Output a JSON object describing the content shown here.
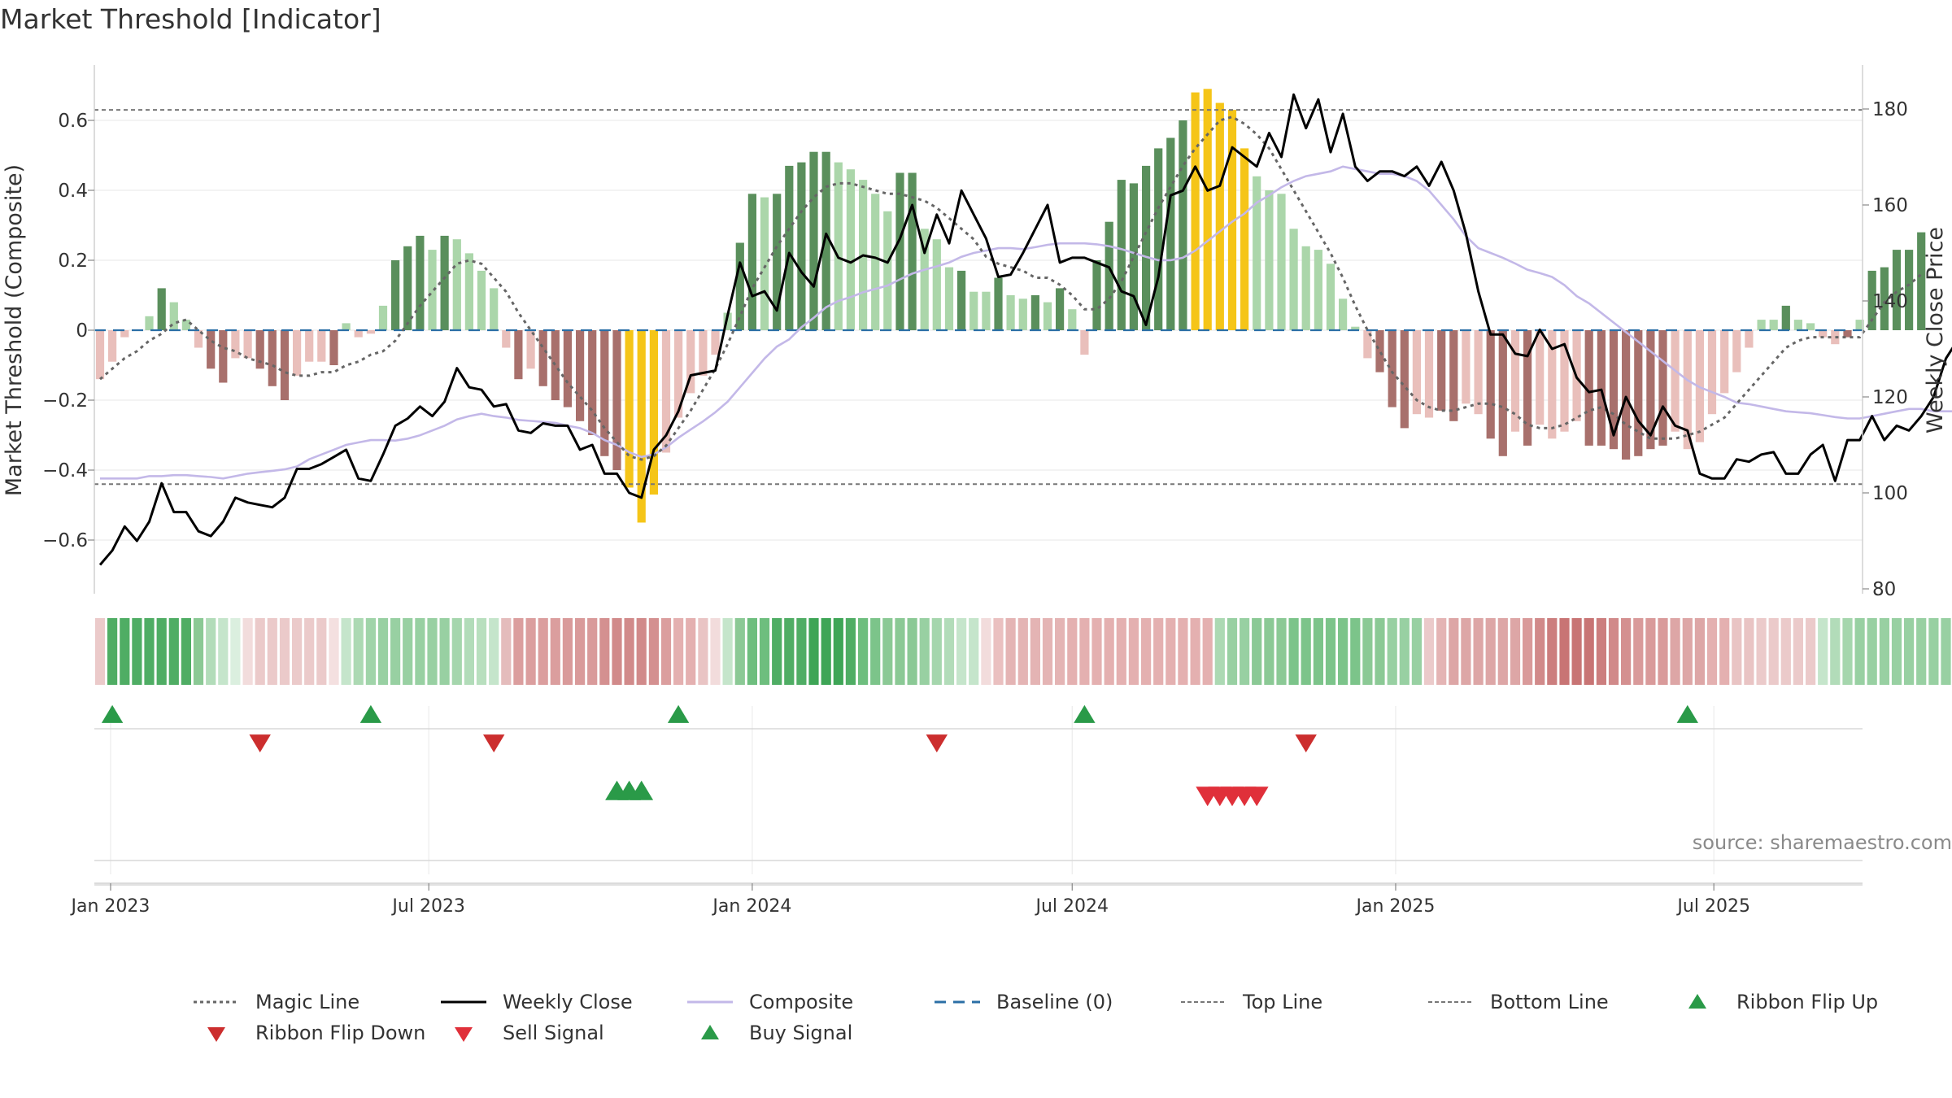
{
  "title": "Market Threshold [Indicator]",
  "source": "source: sharemaestro.com",
  "colors": {
    "magic_line": "#666666",
    "weekly_close": "#000000",
    "composite": "#c3b8e8",
    "baseline": "#2b6fa6",
    "threshold_line": "#777777",
    "bar_dark_green": "#5a8f5c",
    "bar_light_green": "#abd6aa",
    "bar_dark_red": "#a8706c",
    "bar_light_red": "#e9bfbb",
    "bar_extreme": "#f5c518",
    "flip_up": "#2a9a48",
    "flip_down": "#cc2e2e",
    "sell_signal": "#e0303a",
    "buy_signal": "#2a9a48"
  },
  "chart_data": {
    "type": "bar",
    "ylabel": "Market Threshold (Composite)",
    "ylabel_right": "Weekly Close Price",
    "ylim": [
      -0.75,
      0.76
    ],
    "ylim_right": [
      80,
      190
    ],
    "yticks": [
      0.6,
      0.4,
      0.2,
      0,
      -0.2,
      -0.4,
      -0.6
    ],
    "ytick_labels": [
      "0.6",
      "0.4",
      "0.2",
      "0",
      "−0.2",
      "−0.4",
      "−0.6"
    ],
    "yticks_right": [
      180,
      160,
      140,
      120,
      100,
      80
    ],
    "x_start": "2022-12-26",
    "x_step_days": 7,
    "x_ticks": [
      {
        "date": "2023-01-01",
        "label": "Jan 2023"
      },
      {
        "date": "2023-07-01",
        "label": "Jul 2023"
      },
      {
        "date": "2024-01-01",
        "label": "Jan 2024"
      },
      {
        "date": "2024-07-01",
        "label": "Jul 2024"
      },
      {
        "date": "2025-01-01",
        "label": "Jan 2025"
      },
      {
        "date": "2025-07-01",
        "label": "Jul 2025"
      }
    ],
    "top_line": 0.63,
    "bottom_line": -0.44,
    "baseline": 0,
    "composite_bars": [
      -0.14,
      -0.09,
      -0.02,
      0.0,
      0.04,
      0.12,
      0.08,
      0.03,
      -0.05,
      -0.11,
      -0.15,
      -0.08,
      -0.08,
      -0.11,
      -0.16,
      -0.2,
      -0.13,
      -0.09,
      -0.09,
      -0.1,
      0.02,
      -0.02,
      -0.01,
      0.07,
      0.2,
      0.24,
      0.27,
      0.23,
      0.27,
      0.26,
      0.22,
      0.17,
      0.12,
      -0.05,
      -0.14,
      -0.11,
      -0.16,
      -0.2,
      -0.22,
      -0.26,
      -0.3,
      -0.36,
      -0.4,
      -0.45,
      -0.55,
      -0.47,
      -0.35,
      -0.25,
      -0.18,
      -0.13,
      -0.07,
      0.05,
      0.25,
      0.39,
      0.38,
      0.39,
      0.47,
      0.48,
      0.51,
      0.51,
      0.48,
      0.46,
      0.43,
      0.39,
      0.34,
      0.45,
      0.45,
      0.29,
      0.26,
      0.18,
      0.17,
      0.11,
      0.11,
      0.15,
      0.1,
      0.09,
      0.1,
      0.08,
      0.12,
      0.06,
      -0.07,
      0.2,
      0.31,
      0.43,
      0.42,
      0.47,
      0.52,
      0.55,
      0.6,
      0.68,
      0.69,
      0.65,
      0.63,
      0.52,
      0.44,
      0.4,
      0.39,
      0.29,
      0.24,
      0.23,
      0.19,
      0.09,
      0.01,
      -0.08,
      -0.12,
      -0.22,
      -0.28,
      -0.24,
      -0.25,
      -0.23,
      -0.26,
      -0.21,
      -0.24,
      -0.31,
      -0.36,
      -0.29,
      -0.33,
      -0.27,
      -0.31,
      -0.29,
      -0.26,
      -0.33,
      -0.33,
      -0.34,
      -0.37,
      -0.36,
      -0.34,
      -0.33,
      -0.29,
      -0.34,
      -0.32,
      -0.24,
      -0.18,
      -0.12,
      -0.05,
      0.03,
      0.03,
      0.07,
      0.03,
      0.02,
      -0.02,
      -0.04,
      -0.02,
      0.03,
      0.17,
      0.18,
      0.23,
      0.23,
      0.28
    ],
    "bar_categories": [
      "lr",
      "lr",
      "lr",
      "lg",
      "lg",
      "dg",
      "lg",
      "lg",
      "lr",
      "dr",
      "dr",
      "lr",
      "lr",
      "dr",
      "dr",
      "dr",
      "lr",
      "lr",
      "lr",
      "dr",
      "lg",
      "lr",
      "lr",
      "lg",
      "dg",
      "dg",
      "dg",
      "lg",
      "dg",
      "lg",
      "lg",
      "lg",
      "lg",
      "lr",
      "dr",
      "lr",
      "dr",
      "dr",
      "dr",
      "dr",
      "dr",
      "dr",
      "dr",
      "ex",
      "ex",
      "ex",
      "lr",
      "lr",
      "lr",
      "lr",
      "lr",
      "lg",
      "dg",
      "dg",
      "lg",
      "dg",
      "dg",
      "dg",
      "dg",
      "dg",
      "lg",
      "lg",
      "lg",
      "lg",
      "lg",
      "dg",
      "dg",
      "lg",
      "lg",
      "lg",
      "dg",
      "lg",
      "lg",
      "dg",
      "lg",
      "lg",
      "dg",
      "lg",
      "dg",
      "lg",
      "lr",
      "dg",
      "dg",
      "dg",
      "dg",
      "dg",
      "dg",
      "dg",
      "dg",
      "ex",
      "ex",
      "ex",
      "ex",
      "ex",
      "lg",
      "lg",
      "lg",
      "lg",
      "lg",
      "lg",
      "lg",
      "lg",
      "lg",
      "lr",
      "dr",
      "dr",
      "dr",
      "lr",
      "lr",
      "dr",
      "dr",
      "lr",
      "lr",
      "dr",
      "dr",
      "lr",
      "dr",
      "lr",
      "lr",
      "lr",
      "lr",
      "dr",
      "dr",
      "dr",
      "dr",
      "dr",
      "dr",
      "dr",
      "lr",
      "lr",
      "lr",
      "lr",
      "lr",
      "lr",
      "lr",
      "lg",
      "lg",
      "dg",
      "lg",
      "lg",
      "lr",
      "lr",
      "dr",
      "lg",
      "dg",
      "dg",
      "dg",
      "dg",
      "dg"
    ],
    "weekly_close": [
      85,
      88,
      93,
      90,
      94,
      102,
      96,
      96,
      92,
      91,
      94,
      99,
      98,
      97.5,
      97,
      99,
      105,
      105,
      106,
      107.5,
      109,
      103,
      102.5,
      108,
      114,
      115.5,
      118,
      116,
      119,
      126,
      122,
      121.5,
      118,
      118.5,
      113,
      112.5,
      114.5,
      114,
      114,
      109,
      110,
      104,
      104,
      100,
      99,
      109,
      112,
      117,
      124.5,
      125,
      125.5,
      137,
      148,
      141,
      142,
      138,
      150,
      146,
      143,
      154,
      149,
      148,
      149.5,
      149,
      148,
      153,
      160,
      150,
      158,
      152,
      163,
      158,
      153,
      145,
      145.5,
      150,
      155,
      160,
      148,
      149,
      149,
      148,
      147,
      142,
      141,
      135,
      145,
      162,
      163,
      168,
      163,
      164,
      172,
      170,
      168,
      175,
      170,
      183,
      176,
      182,
      171,
      179,
      168,
      165,
      167,
      167,
      166,
      168,
      164,
      169,
      163,
      154,
      142,
      133,
      133,
      129,
      128.5,
      134,
      130,
      131,
      124,
      121,
      121.5,
      112,
      120,
      115,
      112,
      118,
      114,
      113,
      104,
      103,
      103,
      107,
      106.5,
      108,
      108.5,
      104,
      104,
      108,
      110,
      102.5,
      111,
      111,
      116,
      111,
      114,
      113,
      116,
      120,
      128,
      132,
      132,
      132,
      143,
      139,
      127
    ],
    "composite_line": [
      103,
      103,
      103,
      103,
      103.5,
      103.5,
      103.7,
      103.7,
      103.5,
      103.3,
      103,
      103.5,
      104,
      104.3,
      104.6,
      104.9,
      105.5,
      107,
      108,
      109,
      110,
      110.5,
      111,
      111,
      110.9,
      111.3,
      112,
      113,
      114,
      115.3,
      116,
      116.5,
      116,
      115.7,
      115.2,
      115,
      114.8,
      114.6,
      114,
      113.5,
      112.5,
      111,
      110,
      108.5,
      107.5,
      108,
      109.5,
      111.5,
      113.2,
      114.9,
      116.8,
      119,
      122,
      125,
      128,
      130.5,
      132,
      134.5,
      136.5,
      138.7,
      140,
      140.8,
      141.8,
      142.5,
      143.2,
      144.5,
      145.7,
      146.5,
      147.2,
      148,
      149.2,
      150,
      150.5,
      151,
      151,
      150.8,
      151.2,
      151.7,
      152,
      152,
      152,
      151.8,
      151.4,
      150.8,
      150,
      149.2,
      148.5,
      148.5,
      149,
      150.5,
      152.5,
      154.5,
      156.5,
      158.2,
      160.5,
      162,
      163.7,
      165,
      166,
      166.5,
      167,
      168,
      167.5,
      167,
      166.5,
      166.5,
      166,
      165,
      163,
      160,
      157,
      153.5,
      151,
      150,
      149,
      147.8,
      146.5,
      145.8,
      145,
      143.3,
      141,
      139.5,
      137.5,
      135.5,
      133.5,
      131.5,
      129.5,
      127.5,
      125.5,
      123.5,
      122,
      121,
      120,
      118.8,
      118.5,
      118,
      117.5,
      117,
      116.8,
      116.6,
      116.2,
      115.8,
      115.5,
      115.5,
      116,
      116.5,
      117,
      117.5,
      117.5,
      117,
      117,
      117,
      117.5,
      118,
      120,
      122.5,
      124.5,
      126,
      127
    ],
    "magic_line": [
      -0.14,
      -0.11,
      -0.08,
      -0.06,
      -0.03,
      -0.01,
      0.02,
      0.03,
      0.0,
      -0.03,
      -0.05,
      -0.06,
      -0.08,
      -0.09,
      -0.1,
      -0.12,
      -0.13,
      -0.13,
      -0.12,
      -0.12,
      -0.1,
      -0.09,
      -0.07,
      -0.06,
      -0.03,
      0.02,
      0.07,
      0.11,
      0.15,
      0.19,
      0.2,
      0.19,
      0.15,
      0.11,
      0.05,
      -0.0,
      -0.05,
      -0.1,
      -0.15,
      -0.19,
      -0.23,
      -0.28,
      -0.32,
      -0.36,
      -0.37,
      -0.36,
      -0.33,
      -0.28,
      -0.23,
      -0.17,
      -0.11,
      -0.04,
      0.04,
      0.12,
      0.18,
      0.24,
      0.29,
      0.34,
      0.38,
      0.41,
      0.42,
      0.42,
      0.41,
      0.4,
      0.39,
      0.39,
      0.38,
      0.37,
      0.35,
      0.32,
      0.29,
      0.26,
      0.21,
      0.19,
      0.18,
      0.17,
      0.15,
      0.15,
      0.13,
      0.1,
      0.06,
      0.06,
      0.09,
      0.14,
      0.21,
      0.28,
      0.35,
      0.41,
      0.47,
      0.52,
      0.56,
      0.6,
      0.61,
      0.59,
      0.56,
      0.52,
      0.46,
      0.4,
      0.34,
      0.28,
      0.22,
      0.15,
      0.07,
      0.0,
      -0.06,
      -0.12,
      -0.16,
      -0.2,
      -0.22,
      -0.23,
      -0.23,
      -0.22,
      -0.21,
      -0.21,
      -0.22,
      -0.24,
      -0.27,
      -0.28,
      -0.28,
      -0.27,
      -0.25,
      -0.23,
      -0.22,
      -0.24,
      -0.27,
      -0.29,
      -0.31,
      -0.31,
      -0.31,
      -0.3,
      -0.29,
      -0.27,
      -0.25,
      -0.21,
      -0.17,
      -0.13,
      -0.09,
      -0.05,
      -0.03,
      -0.02,
      -0.02,
      -0.02,
      -0.02,
      -0.02,
      0.03,
      0.08,
      0.11,
      0.13,
      0.16
    ],
    "ribbon_colors": [
      "#ebcaca",
      "#4fad64",
      "#4fad64",
      "#4fad64",
      "#4fad64",
      "#4fad64",
      "#4fad64",
      "#4fad64",
      "#8bc995",
      "#b2dcb9",
      "#c5e5cb",
      "#dbefdf",
      "#f2dcdc",
      "#ebcaca",
      "#ebcaca",
      "#ebcaca",
      "#ebcaca",
      "#ebcaca",
      "#ebcaca",
      "#f4e0e0",
      "#c5e5cb",
      "#acd9b3",
      "#a0d4a9",
      "#98d0a2",
      "#98d0a2",
      "#98d0a2",
      "#98d0a2",
      "#98d0a2",
      "#98d0a2",
      "#a5d6ad",
      "#b2dcb9",
      "#b8dfbe",
      "#c5e5cb",
      "#e4bcbc",
      "#db9e9e",
      "#db9e9e",
      "#db9e9e",
      "#db9e9e",
      "#d99a9a",
      "#d99a9a",
      "#d99a9a",
      "#d49090",
      "#d18a8a",
      "#d18a8a",
      "#d18a8a",
      "#d49090",
      "#db9e9e",
      "#e4b0b0",
      "#e4b0b0",
      "#e9c4c4",
      "#f2dcdc",
      "#c5e5cb",
      "#8bc995",
      "#6ebe7e",
      "#6ebe7e",
      "#4fad64",
      "#4fad64",
      "#4fad64",
      "#3ea556",
      "#3ea556",
      "#3ea556",
      "#4fad64",
      "#6ebe7e",
      "#7cc48a",
      "#8bc995",
      "#8bc995",
      "#8bc995",
      "#98d0a2",
      "#a5d6ad",
      "#b2dcb9",
      "#c5e5cb",
      "#c5e5cb",
      "#f2dcdc",
      "#eac0c0",
      "#e4b4b4",
      "#e4b4b4",
      "#e4b4b4",
      "#e4b4b4",
      "#e4b4b4",
      "#e4b0b0",
      "#e4b0b0",
      "#e4b0b0",
      "#e4b0b0",
      "#e4b0b0",
      "#e4b0b0",
      "#e4b0b0",
      "#e4b0b0",
      "#e4b0b0",
      "#e4b0b0",
      "#e4b0b0",
      "#e4b0b0",
      "#acd9b3",
      "#98d0a2",
      "#98d0a2",
      "#8bc995",
      "#8bc995",
      "#8bc995",
      "#7cc48a",
      "#7cc48a",
      "#7cc48a",
      "#7cc48a",
      "#7cc48a",
      "#7cc48a",
      "#8bc995",
      "#8bc995",
      "#98d0a2",
      "#98d0a2",
      "#98d0a2",
      "#ebcaca",
      "#e4b4b4",
      "#dda6a6",
      "#dda6a6",
      "#dda6a6",
      "#dda6a6",
      "#dda6a6",
      "#dda6a6",
      "#d99a9a",
      "#d18a8a",
      "#cc7e7e",
      "#c87474",
      "#c87474",
      "#c87474",
      "#cc7e7e",
      "#d18a8a",
      "#d49090",
      "#d99a9a",
      "#d99a9a",
      "#d99a9a",
      "#dda6a6",
      "#dda6a6",
      "#dda6a6",
      "#e4b0b0",
      "#e4b0b0",
      "#e9c4c4",
      "#e9c4c4",
      "#ebcaca",
      "#ebcaca",
      "#ebcaca",
      "#ebcaca",
      "#ebcaca",
      "#c5e5cb",
      "#b2dcb9",
      "#a5d6ad",
      "#98d0a2",
      "#98d0a2",
      "#98d0a2",
      "#98d0a2",
      "#98d0a2",
      "#98d0a2",
      "#98d0a2",
      "#98d0a2",
      "#98d0a2",
      "#8bc995",
      "#8bc995",
      "#8bc995"
    ],
    "ribbon_flip_up": [
      "2023-01-02",
      "2023-05-29",
      "2023-11-20",
      "2024-07-08",
      "2025-06-16"
    ],
    "ribbon_flip_down": [
      "2023-03-27",
      "2023-08-07",
      "2024-04-15",
      "2024-11-11"
    ],
    "buy_signals": [
      "2023-10-16",
      "2023-10-23",
      "2023-10-30"
    ],
    "sell_signals": [
      "2024-09-16",
      "2024-09-23",
      "2024-09-30",
      "2024-10-07",
      "2024-10-14"
    ]
  },
  "legend": [
    {
      "name": "Magic Line",
      "icon": "dotted-line"
    },
    {
      "name": "Weekly Close",
      "icon": "solid-line"
    },
    {
      "name": "Composite",
      "icon": "solid-line"
    },
    {
      "name": "Baseline (0)",
      "icon": "dashed-line"
    },
    {
      "name": "Top Line",
      "icon": "dotted-line"
    },
    {
      "name": "Bottom Line",
      "icon": "dotted-line"
    },
    {
      "name": "Ribbon Flip Up",
      "icon": "triangle-up-icon"
    },
    {
      "name": "Ribbon Flip Down",
      "icon": "triangle-down-icon"
    },
    {
      "name": "Sell Signal",
      "icon": "triangle-down-icon"
    },
    {
      "name": "Buy Signal",
      "icon": "triangle-up-icon"
    }
  ]
}
